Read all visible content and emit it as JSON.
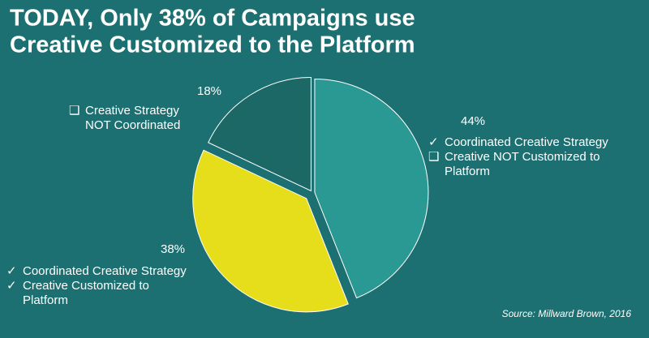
{
  "chart_data": {
    "type": "pie",
    "title": [
      "TODAY, Only 38% of Campaigns use",
      "Creative Customized to the Platform"
    ],
    "values": [
      44,
      38,
      18
    ],
    "value_labels": [
      "44%",
      "38%",
      "18%"
    ],
    "colors": [
      "#2a9893",
      "#e6dd1b",
      "#1b6866"
    ],
    "slice_notes": [
      [
        {
          "marker": "✓",
          "lines": [
            "Coordinated Creative Strategy"
          ]
        },
        {
          "marker": "❑",
          "lines": [
            "Creative NOT Customized to",
            "Platform"
          ]
        }
      ],
      [
        {
          "marker": "✓",
          "lines": [
            "Coordinated Creative Strategy"
          ]
        },
        {
          "marker": "✓",
          "lines": [
            "Creative Customized to",
            "Platform"
          ]
        }
      ],
      [
        {
          "marker": "❑",
          "lines": [
            "Creative Strategy",
            "NOT Coordinated"
          ]
        }
      ]
    ],
    "source": "Source: Millward Brown, 2016"
  }
}
